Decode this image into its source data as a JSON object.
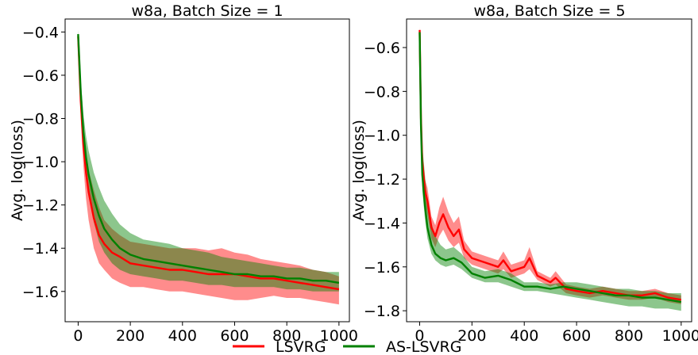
{
  "legend": {
    "placement": "bottom-center",
    "entries": [
      {
        "label": "LSVRG",
        "color": "#ff0000"
      },
      {
        "label": "AS-LSVRG",
        "color": "#008000"
      }
    ]
  },
  "chart_data": [
    {
      "type": "line",
      "title": "w8a, Batch Size = 1",
      "xlabel": "",
      "ylabel": "Avg. log(loss)",
      "xlim": [
        -50,
        1040
      ],
      "ylim": [
        -1.74,
        -0.34
      ],
      "xticks": [
        0,
        200,
        400,
        600,
        800,
        1000
      ],
      "xtick_labels": [
        "0",
        "200",
        "400",
        "600",
        "800",
        "1000"
      ],
      "yticks": [
        -0.4,
        -0.6,
        -0.8,
        -1.0,
        -1.2,
        -1.4,
        -1.6
      ],
      "ytick_labels": [
        "−0.4",
        "−0.6",
        "−0.8",
        "−1.0",
        "−1.2",
        "−1.4",
        "−1.6"
      ],
      "grid": false,
      "shaded_band": true,
      "series": [
        {
          "name": "LSVRG",
          "color": "#ff0000",
          "x": [
            0,
            10,
            20,
            30,
            40,
            60,
            80,
            100,
            130,
            160,
            200,
            250,
            300,
            350,
            400,
            450,
            500,
            550,
            600,
            650,
            700,
            750,
            800,
            850,
            900,
            950,
            1000
          ],
          "values": [
            -0.42,
            -0.72,
            -0.92,
            -1.05,
            -1.14,
            -1.26,
            -1.34,
            -1.38,
            -1.42,
            -1.44,
            -1.47,
            -1.48,
            -1.49,
            -1.5,
            -1.5,
            -1.51,
            -1.52,
            -1.52,
            -1.52,
            -1.53,
            -1.54,
            -1.54,
            -1.55,
            -1.56,
            -1.57,
            -1.58,
            -1.59
          ],
          "lower": [
            -0.44,
            -0.8,
            -1.02,
            -1.17,
            -1.27,
            -1.4,
            -1.47,
            -1.5,
            -1.54,
            -1.56,
            -1.58,
            -1.58,
            -1.59,
            -1.6,
            -1.6,
            -1.61,
            -1.62,
            -1.63,
            -1.64,
            -1.64,
            -1.63,
            -1.62,
            -1.63,
            -1.63,
            -1.64,
            -1.65,
            -1.66
          ],
          "upper": [
            -0.4,
            -0.65,
            -0.84,
            -0.96,
            -1.04,
            -1.13,
            -1.21,
            -1.27,
            -1.31,
            -1.34,
            -1.37,
            -1.38,
            -1.39,
            -1.4,
            -1.4,
            -1.4,
            -1.41,
            -1.4,
            -1.42,
            -1.43,
            -1.45,
            -1.46,
            -1.47,
            -1.48,
            -1.5,
            -1.51,
            -1.53
          ]
        },
        {
          "name": "AS-LSVRG",
          "color": "#008000",
          "x": [
            0,
            10,
            20,
            30,
            40,
            60,
            80,
            100,
            130,
            160,
            200,
            250,
            300,
            350,
            400,
            450,
            500,
            550,
            600,
            650,
            700,
            750,
            800,
            850,
            900,
            950,
            1000
          ],
          "values": [
            -0.41,
            -0.68,
            -0.86,
            -0.98,
            -1.06,
            -1.17,
            -1.25,
            -1.31,
            -1.36,
            -1.4,
            -1.43,
            -1.45,
            -1.46,
            -1.47,
            -1.48,
            -1.49,
            -1.5,
            -1.51,
            -1.52,
            -1.52,
            -1.53,
            -1.53,
            -1.54,
            -1.54,
            -1.55,
            -1.55,
            -1.56
          ],
          "lower": [
            -0.43,
            -0.74,
            -0.93,
            -1.06,
            -1.16,
            -1.28,
            -1.37,
            -1.42,
            -1.47,
            -1.5,
            -1.52,
            -1.53,
            -1.54,
            -1.55,
            -1.55,
            -1.56,
            -1.57,
            -1.57,
            -1.58,
            -1.58,
            -1.58,
            -1.58,
            -1.59,
            -1.59,
            -1.6,
            -1.6,
            -1.6
          ],
          "upper": [
            -0.39,
            -0.62,
            -0.78,
            -0.88,
            -0.95,
            -1.05,
            -1.12,
            -1.18,
            -1.24,
            -1.29,
            -1.33,
            -1.36,
            -1.37,
            -1.38,
            -1.4,
            -1.41,
            -1.42,
            -1.44,
            -1.45,
            -1.46,
            -1.47,
            -1.48,
            -1.49,
            -1.49,
            -1.5,
            -1.51,
            -1.51
          ]
        }
      ]
    },
    {
      "type": "line",
      "title": "w8a, Batch Size = 5",
      "xlabel": "",
      "ylabel": "Avg. log(loss)",
      "xlim": [
        -50,
        1040
      ],
      "ylim": [
        -1.85,
        -0.47
      ],
      "xticks": [
        0,
        200,
        400,
        600,
        800,
        1000
      ],
      "xtick_labels": [
        "0",
        "200",
        "400",
        "600",
        "800",
        "1000"
      ],
      "yticks": [
        -0.6,
        -0.8,
        -1.0,
        -1.2,
        -1.4,
        -1.6,
        -1.8
      ],
      "ytick_labels": [
        "−0.6",
        "−0.8",
        "−1.0",
        "−1.2",
        "−1.4",
        "−1.6",
        "−1.8"
      ],
      "grid": false,
      "shaded_band": true,
      "series": [
        {
          "name": "LSVRG",
          "color": "#ff0000",
          "x": [
            0,
            5,
            10,
            20,
            30,
            45,
            60,
            75,
            90,
            110,
            130,
            150,
            170,
            200,
            250,
            300,
            320,
            350,
            400,
            420,
            450,
            500,
            520,
            560,
            600,
            650,
            700,
            750,
            800,
            850,
            900,
            950,
            1000
          ],
          "values": [
            -0.52,
            -0.92,
            -1.12,
            -1.25,
            -1.3,
            -1.42,
            -1.46,
            -1.4,
            -1.36,
            -1.42,
            -1.46,
            -1.43,
            -1.52,
            -1.56,
            -1.58,
            -1.6,
            -1.57,
            -1.62,
            -1.6,
            -1.56,
            -1.64,
            -1.67,
            -1.65,
            -1.7,
            -1.71,
            -1.72,
            -1.71,
            -1.72,
            -1.73,
            -1.73,
            -1.72,
            -1.74,
            -1.75
          ],
          "lower": [
            -0.54,
            -0.98,
            -1.18,
            -1.3,
            -1.36,
            -1.47,
            -1.51,
            -1.46,
            -1.43,
            -1.48,
            -1.51,
            -1.49,
            -1.56,
            -1.59,
            -1.61,
            -1.63,
            -1.61,
            -1.65,
            -1.63,
            -1.61,
            -1.66,
            -1.69,
            -1.68,
            -1.72,
            -1.73,
            -1.74,
            -1.73,
            -1.74,
            -1.75,
            -1.75,
            -1.74,
            -1.76,
            -1.77
          ],
          "upper": [
            -0.5,
            -0.86,
            -1.06,
            -1.2,
            -1.24,
            -1.37,
            -1.41,
            -1.33,
            -1.28,
            -1.35,
            -1.4,
            -1.37,
            -1.48,
            -1.53,
            -1.55,
            -1.57,
            -1.53,
            -1.59,
            -1.57,
            -1.51,
            -1.62,
            -1.65,
            -1.62,
            -1.68,
            -1.69,
            -1.7,
            -1.69,
            -1.7,
            -1.71,
            -1.71,
            -1.7,
            -1.72,
            -1.73
          ]
        },
        {
          "name": "AS-LSVRG",
          "color": "#008000",
          "x": [
            0,
            5,
            10,
            20,
            30,
            45,
            60,
            80,
            100,
            130,
            160,
            200,
            250,
            300,
            350,
            400,
            450,
            500,
            550,
            600,
            650,
            700,
            750,
            800,
            850,
            900,
            950,
            1000
          ],
          "values": [
            -0.53,
            -0.95,
            -1.18,
            -1.32,
            -1.42,
            -1.5,
            -1.54,
            -1.56,
            -1.57,
            -1.56,
            -1.58,
            -1.63,
            -1.65,
            -1.64,
            -1.66,
            -1.69,
            -1.69,
            -1.7,
            -1.69,
            -1.7,
            -1.71,
            -1.72,
            -1.73,
            -1.73,
            -1.74,
            -1.74,
            -1.75,
            -1.76
          ],
          "lower": [
            -0.55,
            -1.02,
            -1.25,
            -1.38,
            -1.47,
            -1.54,
            -1.57,
            -1.59,
            -1.6,
            -1.59,
            -1.61,
            -1.65,
            -1.67,
            -1.67,
            -1.69,
            -1.71,
            -1.71,
            -1.72,
            -1.73,
            -1.74,
            -1.75,
            -1.76,
            -1.77,
            -1.78,
            -1.78,
            -1.79,
            -1.79,
            -1.8
          ],
          "upper": [
            -0.51,
            -0.88,
            -1.05,
            -1.18,
            -1.3,
            -1.4,
            -1.46,
            -1.5,
            -1.52,
            -1.51,
            -1.54,
            -1.6,
            -1.62,
            -1.61,
            -1.63,
            -1.67,
            -1.67,
            -1.68,
            -1.67,
            -1.67,
            -1.68,
            -1.69,
            -1.7,
            -1.7,
            -1.71,
            -1.71,
            -1.72,
            -1.72
          ]
        }
      ]
    }
  ]
}
